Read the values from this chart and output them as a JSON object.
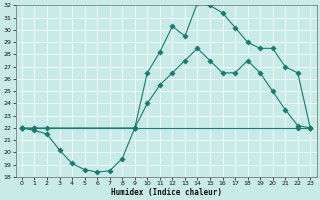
{
  "xlabel": "Humidex (Indice chaleur)",
  "bg_color": "#c8ebe8",
  "grid_color": "#ffffff",
  "line_color": "#1a7a70",
  "ylim": [
    18,
    32
  ],
  "xlim": [
    -0.5,
    23.5
  ],
  "yticks": [
    18,
    19,
    20,
    21,
    22,
    23,
    24,
    25,
    26,
    27,
    28,
    29,
    30,
    31,
    32
  ],
  "xticks": [
    0,
    1,
    2,
    3,
    4,
    5,
    6,
    7,
    8,
    9,
    10,
    11,
    12,
    13,
    14,
    15,
    16,
    17,
    18,
    19,
    20,
    21,
    22,
    23
  ],
  "line1_x": [
    0,
    1,
    2,
    9,
    22,
    23
  ],
  "line1_y": [
    22,
    22,
    22,
    22,
    22,
    22
  ],
  "line2_x": [
    0,
    1,
    2,
    3,
    4,
    5,
    6,
    7,
    8,
    9,
    10,
    11,
    12,
    13,
    14,
    15,
    16,
    17,
    18,
    19,
    20,
    21,
    22,
    23
  ],
  "line2_y": [
    22,
    21.8,
    21.5,
    20.2,
    19.1,
    18.6,
    18.4,
    18.5,
    19.5,
    22.0,
    24.0,
    25.5,
    26.5,
    27.5,
    28.5,
    27.5,
    26.5,
    26.5,
    27.5,
    26.5,
    25.0,
    23.5,
    22.2,
    22.0
  ],
  "line3_x": [
    0,
    1,
    9,
    10,
    11,
    12,
    13,
    14,
    15,
    16,
    17,
    18,
    19,
    20,
    21,
    22,
    23
  ],
  "line3_y": [
    22,
    22,
    22,
    26.5,
    28.2,
    30.3,
    29.5,
    32.2,
    32.0,
    31.4,
    30.2,
    29.0,
    28.5,
    28.5,
    27.0,
    26.5,
    22.0
  ]
}
